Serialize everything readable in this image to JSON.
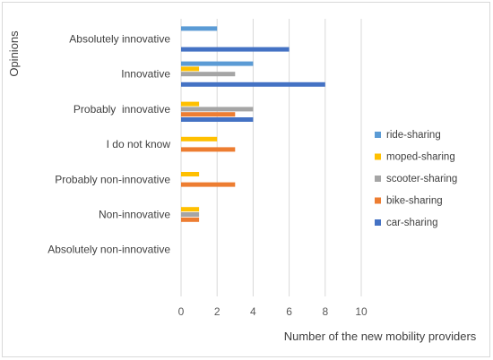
{
  "chart_data": {
    "type": "bar",
    "orientation": "horizontal",
    "xlabel": "Number of the new mobility providers",
    "ylabel": "Opinions",
    "xlim": [
      0,
      10
    ],
    "xticks": [
      0,
      2,
      4,
      6,
      8,
      10
    ],
    "grid": true,
    "legend_position": "right",
    "categories": [
      "Absolutely innovative",
      "Innovative",
      "Probably  innovative",
      "I do not know",
      "Probably non-innovative",
      "Non-innovative",
      "Absolutely non-innovative"
    ],
    "series": [
      {
        "name": "ride-sharing",
        "color": "#5b9bd5",
        "values": [
          2,
          4,
          0,
          0,
          0,
          0,
          0
        ]
      },
      {
        "name": "moped-sharing",
        "color": "#ffc000",
        "values": [
          0,
          1,
          1,
          2,
          1,
          1,
          0
        ]
      },
      {
        "name": "scooter-sharing",
        "color": "#a5a5a5",
        "values": [
          0,
          3,
          4,
          0,
          0,
          1,
          0
        ]
      },
      {
        "name": "bike-sharing",
        "color": "#ed7d31",
        "values": [
          0,
          0,
          3,
          3,
          3,
          1,
          0
        ]
      },
      {
        "name": "car-sharing",
        "color": "#4472c4",
        "values": [
          6,
          8,
          4,
          0,
          0,
          0,
          0
        ]
      }
    ]
  }
}
